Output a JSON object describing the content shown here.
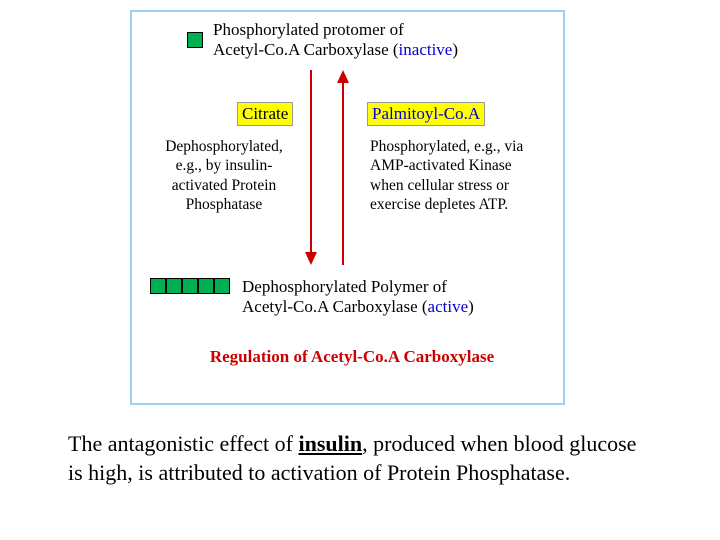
{
  "diagram": {
    "border_color": "#9fcfef",
    "green": "#00b050",
    "highlight_bg": "#ffff00",
    "arrow_color": "#cc0000",
    "title_color": "#cc0000",
    "blue_color": "#0000cc",
    "top_line1": "Phosphorylated protomer of",
    "top_line2a": "Acetyl-Co.A Carboxylase (",
    "top_inactive": "inactive",
    "top_line2b": ")",
    "citrate": "Citrate",
    "palmitoyl": "Palmitoyl-Co.A",
    "left_col": "Dephosphorylated, e.g., by insulin-activated Protein Phosphatase",
    "right_col": "Phosphorylated, e.g., via AMP-activated Kinase when cellular stress or exercise depletes ATP.",
    "bottom_line1": "Dephosphorylated Polymer of",
    "bottom_line2a": "Acetyl-Co.A Carboxylase (",
    "bottom_active": "active",
    "bottom_line2b": ")",
    "title": "Regulation of Acetyl-Co.A Carboxylase"
  },
  "caption": {
    "text1": "The antagonistic effect of ",
    "underline": "insulin",
    "text2": ", produced when blood glucose is high, is attributed to activation of Protein Phosphatase."
  }
}
